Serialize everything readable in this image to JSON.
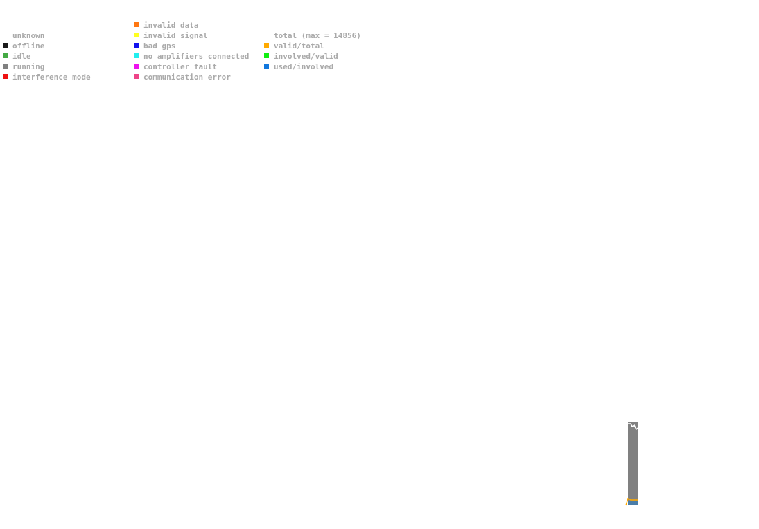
{
  "legend": {
    "columns": [
      {
        "items": [
          {
            "label": "unknown"
          },
          {
            "label": "offline",
            "color": "#1a1a1a"
          },
          {
            "label": "idle",
            "color": "#44aa44"
          },
          {
            "label": "running",
            "color": "#808080"
          },
          {
            "label": "interference mode",
            "color": "#ee1111"
          }
        ]
      },
      {
        "items": [
          {
            "label": "invalid data",
            "color": "#ff7711"
          },
          {
            "label": "invalid signal",
            "color": "#ffff22"
          },
          {
            "label": "bad gps",
            "color": "#1111ee"
          },
          {
            "label": "no amplifiers connected",
            "color": "#22eeee"
          },
          {
            "label": "controller fault",
            "color": "#ee11ee"
          },
          {
            "label": "communication error",
            "color": "#ee4488"
          }
        ]
      },
      {
        "items": [
          {
            "label": "total (max = 14856)"
          },
          {
            "label": "valid/total",
            "color": "#ffaa00"
          },
          {
            "label": "involved/valid",
            "color": "#11ee11"
          },
          {
            "label": "used/involved",
            "color": "#1177dd"
          }
        ]
      }
    ]
  }
}
